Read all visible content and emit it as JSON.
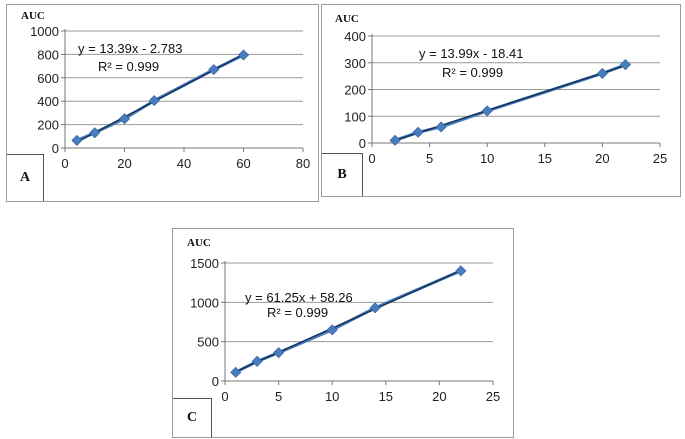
{
  "chart_data": [
    {
      "id": "A",
      "type": "scatter",
      "panel_label": "A",
      "ylabel": "AUC",
      "xlim": [
        0,
        80
      ],
      "ylim": [
        0,
        1000
      ],
      "xticks": [
        0,
        20,
        40,
        60,
        80
      ],
      "yticks": [
        0,
        200,
        400,
        600,
        800,
        1000
      ],
      "points": [
        [
          4,
          65
        ],
        [
          10,
          130
        ],
        [
          20,
          250
        ],
        [
          30,
          405
        ],
        [
          50,
          670
        ],
        [
          60,
          795
        ]
      ],
      "trendline": {
        "slope": 13.39,
        "intercept": -2.783,
        "x": [
          4,
          60
        ]
      },
      "equation": "y = 13.39x - 2.783",
      "r2": "R² = 0.999"
    },
    {
      "id": "B",
      "type": "scatter",
      "panel_label": "B",
      "ylabel": "AUC",
      "xlim": [
        0,
        25
      ],
      "ylim": [
        0,
        400
      ],
      "xticks": [
        0,
        5,
        10,
        15,
        20,
        25
      ],
      "yticks": [
        0,
        100,
        200,
        300,
        400
      ],
      "points": [
        [
          2,
          10
        ],
        [
          4,
          40
        ],
        [
          6,
          60
        ],
        [
          10,
          120
        ],
        [
          20,
          260
        ],
        [
          22,
          293
        ]
      ],
      "trendline": {
        "slope": 13.99,
        "intercept": -18.41,
        "x": [
          2,
          22
        ]
      },
      "equation": "y = 13.99x - 18.41",
      "r2": "R² = 0.999"
    },
    {
      "id": "C",
      "type": "scatter",
      "panel_label": "C",
      "ylabel": "AUC",
      "xlim": [
        0,
        25
      ],
      "ylim": [
        0,
        1500
      ],
      "xticks": [
        0,
        5,
        10,
        15,
        20,
        25
      ],
      "yticks": [
        0,
        500,
        1000,
        1500
      ],
      "points": [
        [
          1,
          110
        ],
        [
          3,
          250
        ],
        [
          5,
          360
        ],
        [
          10,
          650
        ],
        [
          14,
          930
        ],
        [
          22,
          1400
        ]
      ],
      "trendline": {
        "slope": 61.25,
        "intercept": 58.26,
        "x": [
          1,
          22
        ]
      },
      "equation": "y = 61.25x + 58.26",
      "r2": "R² = 0.999"
    }
  ],
  "colors": {
    "marker": "#4a7dbd",
    "trend": "#17365d",
    "gridline": "#999999",
    "axis": "#777777"
  }
}
